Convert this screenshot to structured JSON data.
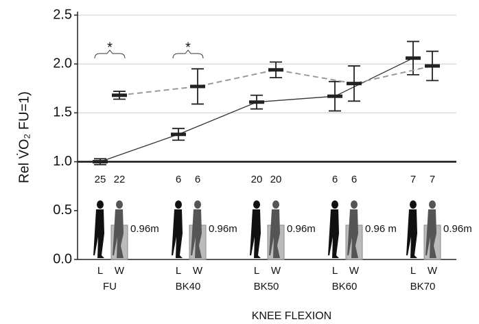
{
  "chart_data": {
    "type": "errorbar-line",
    "y_label": "Rel V̇O₂ FU=1)",
    "x_label": "KNEE FLEXION",
    "categories": [
      "FU",
      "BK40",
      "BK50",
      "BK60",
      "BK70"
    ],
    "series": [
      {
        "name": "L",
        "color": "#333333",
        "dashed": false,
        "values": [
          1.0,
          1.28,
          1.61,
          1.67,
          2.06
        ],
        "errors": [
          0.03,
          0.06,
          0.07,
          0.15,
          0.17
        ],
        "n": [
          25,
          6,
          20,
          6,
          7
        ]
      },
      {
        "name": "W",
        "color": "#999999",
        "dashed": true,
        "values": [
          1.68,
          1.77,
          1.94,
          1.8,
          1.98
        ],
        "errors": [
          0.04,
          0.18,
          0.08,
          0.18,
          0.15
        ],
        "n": [
          22,
          6,
          20,
          6,
          7
        ]
      }
    ],
    "significance": [
      "*",
      "*",
      null,
      null,
      null
    ],
    "step_heights": [
      "0.96m",
      "0.96m",
      "0.96m",
      "0.96 m",
      "0.96m"
    ],
    "ylim": [
      0,
      2.5
    ],
    "yticks": [
      {
        "value": 0,
        "label": "0.0"
      },
      0.5,
      {
        "value": 1,
        "label": "1.0"
      },
      1.5,
      {
        "value": 2,
        "label": "2.0"
      },
      2.5
    ],
    "reference_line": 1,
    "grid": true
  }
}
